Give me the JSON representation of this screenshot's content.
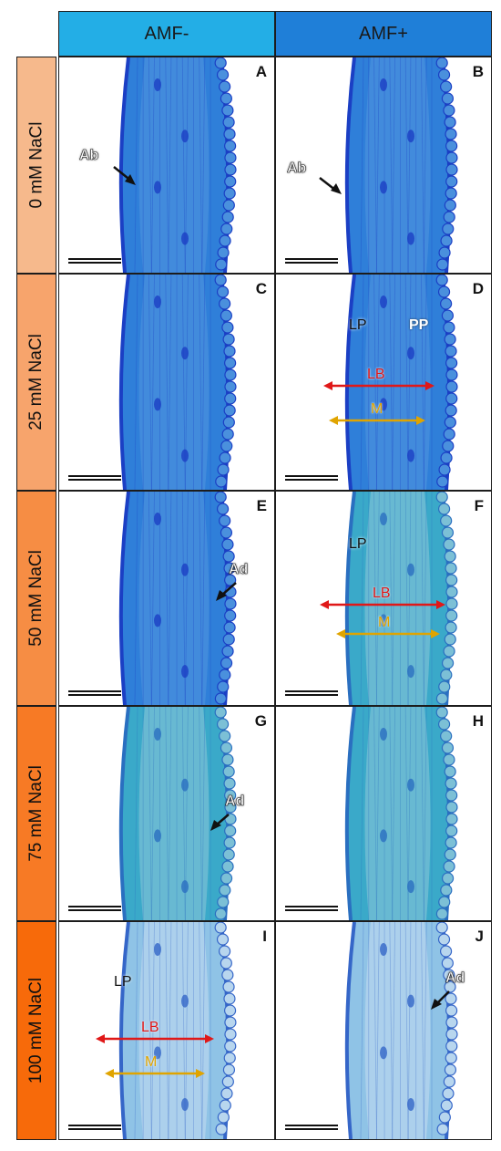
{
  "columns": [
    {
      "label": "AMF-",
      "color": "#23aee6"
    },
    {
      "label": "AMF+",
      "color": "#1f7fd8"
    }
  ],
  "rows": [
    {
      "label": "0 mM NaCl",
      "color": "#f6b98c"
    },
    {
      "label": "25 mM NaCl",
      "color": "#f7a46c"
    },
    {
      "label": "50 mM NaCl",
      "color": "#f68d44"
    },
    {
      "label": "75 mM NaCl",
      "color": "#f77a25"
    },
    {
      "label": "100 mM NaCl",
      "color": "#f76a0a"
    }
  ],
  "panels": [
    {
      "letter": "A",
      "tone": "blue",
      "labels": [
        "Ab"
      ]
    },
    {
      "letter": "B",
      "tone": "blue",
      "labels": [
        "Ab"
      ]
    },
    {
      "letter": "C",
      "tone": "blue",
      "labels": []
    },
    {
      "letter": "D",
      "tone": "blue",
      "labels": [
        "LP",
        "PP",
        "LB",
        "M"
      ]
    },
    {
      "letter": "E",
      "tone": "blue",
      "labels": [
        "Ad"
      ]
    },
    {
      "letter": "F",
      "tone": "teal",
      "labels": [
        "LP",
        "LB",
        "M"
      ]
    },
    {
      "letter": "G",
      "tone": "teal",
      "labels": [
        "Ad"
      ]
    },
    {
      "letter": "H",
      "tone": "teal",
      "labels": []
    },
    {
      "letter": "I",
      "tone": "pale",
      "labels": [
        "LP",
        "LB",
        "M"
      ]
    },
    {
      "letter": "J",
      "tone": "pale",
      "labels": [
        "Ad"
      ]
    }
  ],
  "colors": {
    "stain_dark": "#1b3fc4",
    "stain_mid": "#2f7fd9",
    "stain_teal": "#3aa9c9",
    "stain_pale": "#8fc3e6",
    "lb_arrow": "#e01818",
    "m_arrow": "#e0a400"
  }
}
